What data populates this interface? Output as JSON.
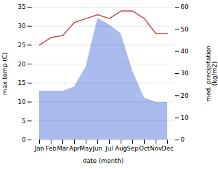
{
  "chart_data": {
    "type": "line",
    "xlabel": "date (month)",
    "ylabel": "max temp (C)",
    "y2label": "med. precipitation\n(kg/m2)",
    "categories": [
      "Jan",
      "Feb",
      "Mar",
      "Apr",
      "May",
      "Jun",
      "Jul",
      "Aug",
      "Sep",
      "Oct",
      "Nov",
      "Dec"
    ],
    "series": [
      {
        "type": "area",
        "color": "#aabbee",
        "axis": "y2",
        "values": [
          22,
          22,
          22,
          24,
          33,
          55,
          52,
          48,
          31,
          19,
          17,
          17
        ]
      },
      {
        "type": "line",
        "color": "#cc4444",
        "values": [
          25,
          27,
          27.5,
          31,
          32,
          33,
          32,
          34,
          34,
          32,
          28,
          28
        ]
      }
    ],
    "ylim": [
      0,
      35
    ],
    "yticks": [
      0,
      5,
      10,
      15,
      20,
      25,
      30,
      35
    ],
    "y2lim": [
      0,
      60
    ],
    "y2ticks": [
      0,
      10,
      20,
      30,
      40,
      50,
      60
    ],
    "grid": true
  }
}
